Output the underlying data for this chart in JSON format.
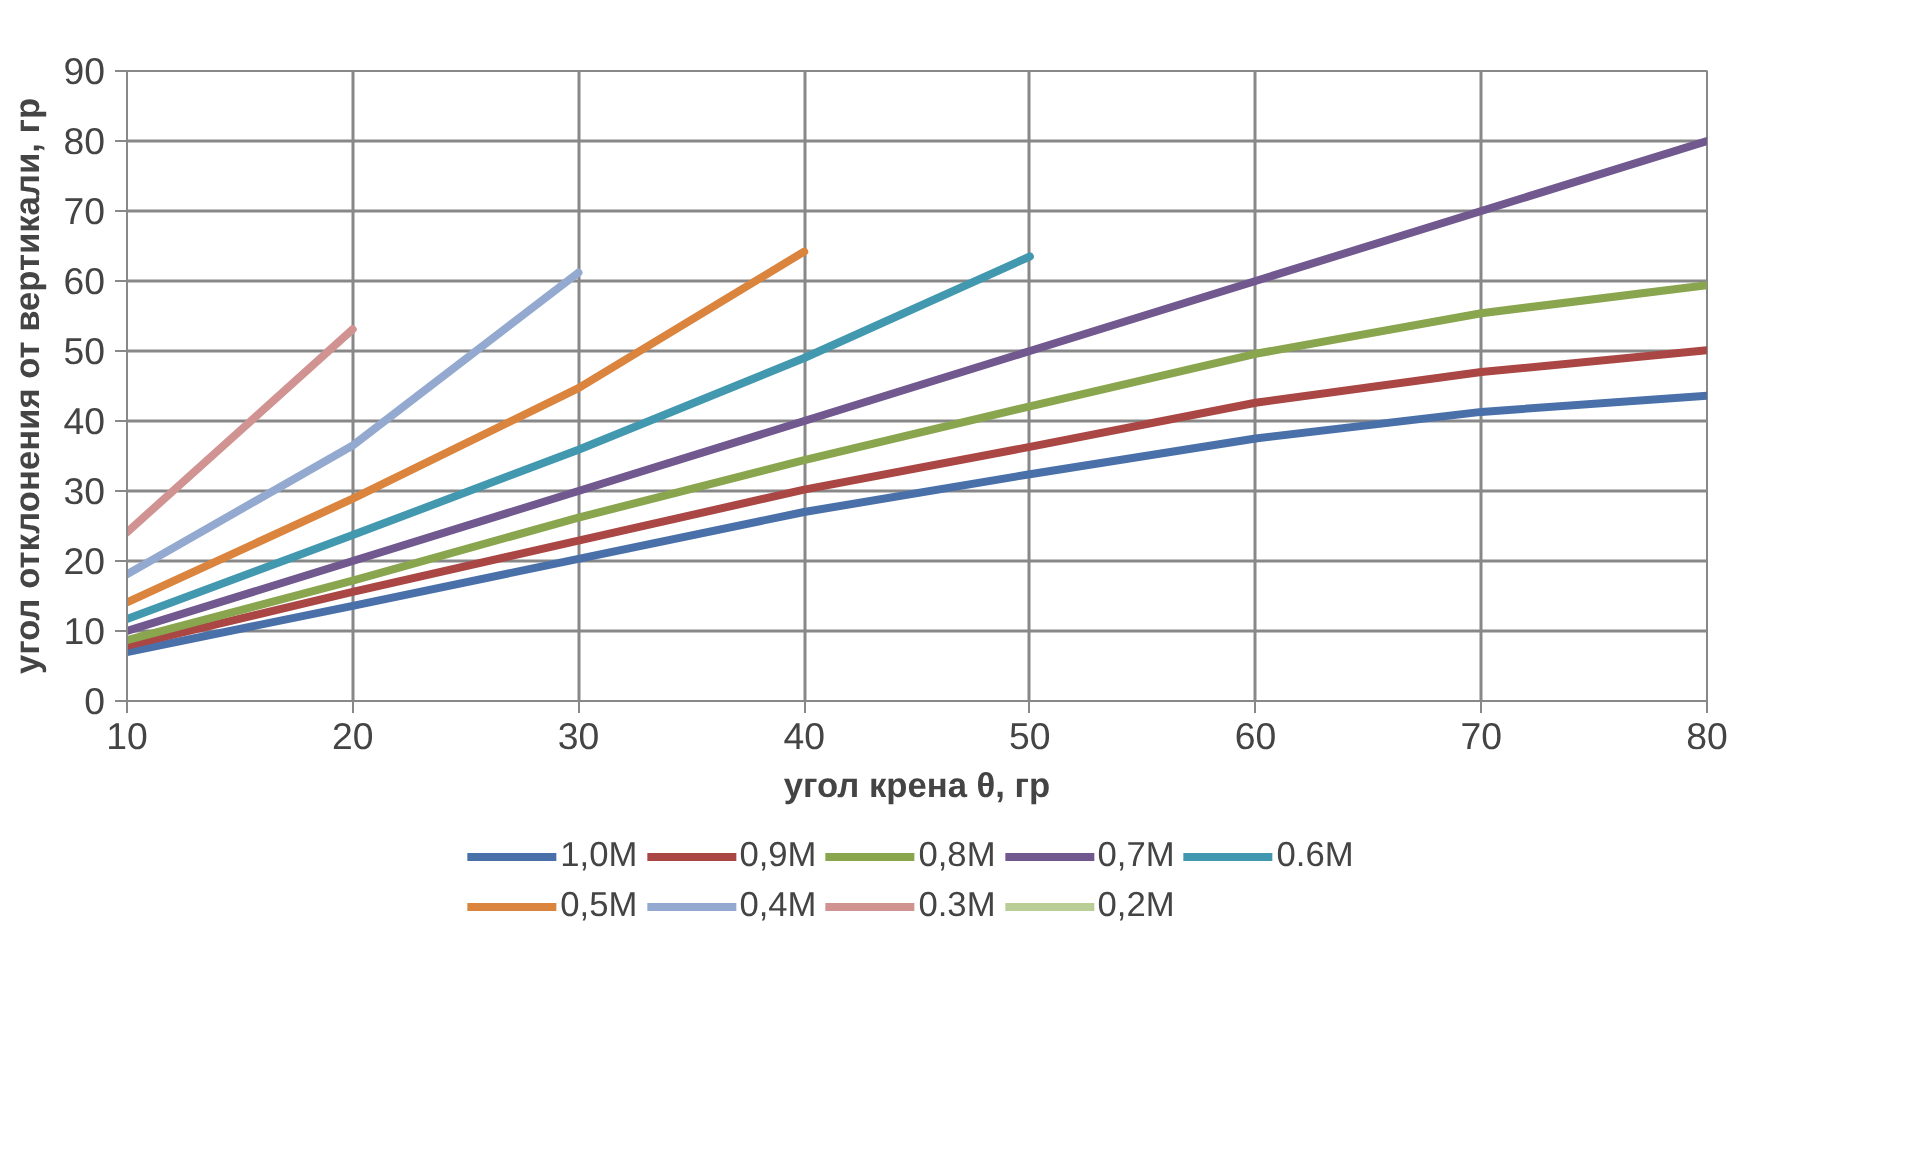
{
  "chart_data": {
    "type": "line",
    "xlabel": "угол крена θ, гр",
    "ylabel": "угол отклонения от вертикали, гр",
    "xlim": [
      10,
      80
    ],
    "xticks": [
      10,
      20,
      30,
      40,
      50,
      60,
      70,
      80
    ],
    "ylim": [
      0,
      90
    ],
    "yticks": [
      0,
      10,
      20,
      30,
      40,
      50,
      60,
      70,
      80,
      90
    ],
    "grid": true,
    "legend": "bottom",
    "marker": "none",
    "line_style": "solid",
    "series": [
      {
        "name": "1,0M",
        "color": "#4a70aa",
        "x": [
          10,
          20,
          30,
          40,
          50,
          60,
          70,
          80
        ],
        "values": [
          7.0,
          13.6,
          20.3,
          27.0,
          32.4,
          37.5,
          41.3,
          43.6
        ]
      },
      {
        "name": "0,9M",
        "color": "#aa4643",
        "x": [
          10,
          20,
          30,
          40,
          50,
          60,
          70,
          80
        ],
        "values": [
          7.9,
          15.6,
          22.9,
          30.2,
          36.3,
          42.6,
          47.0,
          50.1
        ]
      },
      {
        "name": "0,8M",
        "color": "#89a54e",
        "x": [
          10,
          20,
          30,
          40,
          50,
          60,
          70,
          80
        ],
        "values": [
          8.7,
          17.2,
          26.2,
          34.4,
          42.1,
          49.6,
          55.4,
          59.4
        ]
      },
      {
        "name": "0,7M",
        "color": "#71588f",
        "x": [
          10,
          20,
          30,
          40,
          50,
          60,
          70,
          80
        ],
        "values": [
          10,
          20,
          30,
          40,
          50,
          60,
          70,
          80
        ]
      },
      {
        "name": "0.6M",
        "color": "#4198af",
        "x": [
          10,
          20,
          30,
          40,
          50
        ],
        "values": [
          11.7,
          23.7,
          35.9,
          49.0,
          63.5
        ]
      },
      {
        "name": "0,5M",
        "color": "#db843d",
        "x": [
          10,
          20,
          30,
          40
        ],
        "values": [
          14.1,
          28.9,
          44.7,
          64.2
        ]
      },
      {
        "name": "0,4M",
        "color": "#93a9cf",
        "x": [
          10,
          20,
          30
        ],
        "values": [
          18.1,
          36.5,
          61.2
        ]
      },
      {
        "name": "0.3M",
        "color": "#d19392",
        "x": [
          10,
          20
        ],
        "values": [
          24.1,
          53.1
        ]
      },
      {
        "name": "0,2M",
        "color": "#b9cd96"
      }
    ]
  }
}
